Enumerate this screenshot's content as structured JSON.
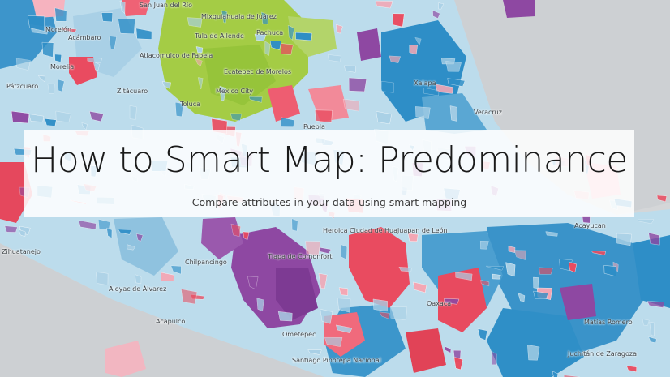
{
  "banner": {
    "title": "How to Smart Map: Predominance",
    "subtitle": "Compare attributes in your data using smart mapping"
  },
  "map": {
    "legend_colors": {
      "land_base": "#d4d6d8",
      "water": "#cfd2d4",
      "light_blue": "#a9d0e6",
      "blue": "#2e8ec7",
      "green": "#9fc93c",
      "purple": "#8e48a2",
      "red": "#ea4b5f",
      "pink": "#f4a7b4"
    },
    "places": [
      {
        "name": "San Juan del Río"
      },
      {
        "name": "Morelón"
      },
      {
        "name": "Acámbaro"
      },
      {
        "name": "Mixquiahuala de Juárez"
      },
      {
        "name": "Pachuca"
      },
      {
        "name": "Tula de Allende"
      },
      {
        "name": "Atlacomulco de Fabela"
      },
      {
        "name": "Morelia"
      },
      {
        "name": "Pátzcuaro"
      },
      {
        "name": "Zitácuaro"
      },
      {
        "name": "Ecatepec de Morelos"
      },
      {
        "name": "Mexico City"
      },
      {
        "name": "Toluca"
      },
      {
        "name": "Xalapa"
      },
      {
        "name": "Veracruz"
      },
      {
        "name": "Puebla"
      },
      {
        "name": "Tlapa de Comonfort"
      },
      {
        "name": "Heroica Ciudad de Huajuapan de León"
      },
      {
        "name": "Chilpancingo"
      },
      {
        "name": "Zihuatanejo"
      },
      {
        "name": "Aloyac de Álvarez"
      },
      {
        "name": "Acapulco"
      },
      {
        "name": "Ometepec"
      },
      {
        "name": "Oaxaca"
      },
      {
        "name": "Acayucan"
      },
      {
        "name": "Matías Romero"
      },
      {
        "name": "Juchitán de Zaragoza"
      },
      {
        "name": "Santiago Pinotepa Nacional"
      }
    ]
  }
}
